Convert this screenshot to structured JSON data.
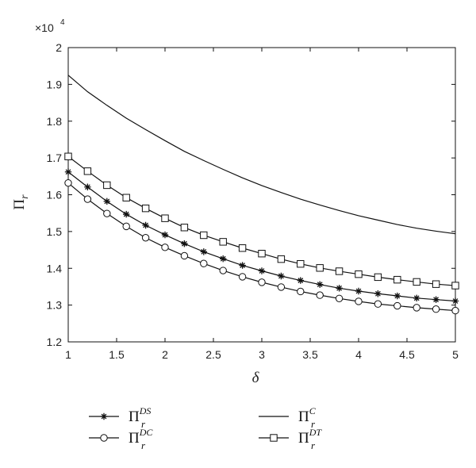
{
  "chart_data": {
    "type": "line",
    "xlabel": "δ",
    "ylabel": "Π",
    "ylabel_sub": "r",
    "scale_label": "×10",
    "scale_exp": "4",
    "xlim": [
      1,
      5
    ],
    "ylim": [
      1.2,
      2.0
    ],
    "y_multiplier": 10000,
    "xticks": [
      1,
      1.5,
      2,
      2.5,
      3,
      3.5,
      4,
      4.5,
      5
    ],
    "xtick_labels": [
      "1",
      "1.5",
      "2",
      "2.5",
      "3",
      "3.5",
      "4",
      "4.5",
      "5"
    ],
    "yticks": [
      1.2,
      1.3,
      1.4,
      1.5,
      1.6,
      1.7,
      1.8,
      1.9,
      2.0
    ],
    "ytick_labels": [
      "1.2",
      "1.3",
      "1.4",
      "1.5",
      "1.6",
      "1.7",
      "1.8",
      "1.9",
      "2"
    ],
    "grid": false,
    "legend_placement": "bottom",
    "x": [
      1,
      1.2,
      1.4,
      1.6,
      1.8,
      2,
      2.2,
      2.4,
      2.6,
      2.8,
      3,
      3.2,
      3.4,
      3.6,
      3.8,
      4,
      4.2,
      4.4,
      4.6,
      4.8,
      5
    ],
    "series": [
      {
        "name": "Π",
        "name_sub": "r",
        "name_sup": "DS",
        "marker": "star",
        "values": [
          1.662,
          1.621,
          1.582,
          1.547,
          1.517,
          1.491,
          1.467,
          1.445,
          1.426,
          1.408,
          1.393,
          1.379,
          1.367,
          1.356,
          1.346,
          1.338,
          1.331,
          1.325,
          1.319,
          1.315,
          1.311
        ]
      },
      {
        "name": "Π",
        "name_sub": "r",
        "name_sup": "DC",
        "marker": "circle",
        "values": [
          1.632,
          1.588,
          1.549,
          1.514,
          1.483,
          1.457,
          1.434,
          1.413,
          1.394,
          1.377,
          1.362,
          1.349,
          1.337,
          1.327,
          1.318,
          1.31,
          1.303,
          1.298,
          1.293,
          1.289,
          1.285
        ]
      },
      {
        "name": "Π",
        "name_sub": "r",
        "name_sup": "C",
        "marker": "none",
        "values": [
          1.925,
          1.88,
          1.843,
          1.808,
          1.777,
          1.747,
          1.718,
          1.693,
          1.669,
          1.646,
          1.625,
          1.606,
          1.588,
          1.572,
          1.557,
          1.543,
          1.531,
          1.519,
          1.509,
          1.501,
          1.494
        ]
      },
      {
        "name": "Π",
        "name_sub": "r",
        "name_sup": "DT",
        "marker": "square",
        "values": [
          1.704,
          1.664,
          1.626,
          1.592,
          1.563,
          1.536,
          1.511,
          1.49,
          1.472,
          1.455,
          1.44,
          1.425,
          1.412,
          1.401,
          1.392,
          1.384,
          1.376,
          1.369,
          1.363,
          1.357,
          1.353
        ]
      }
    ]
  }
}
